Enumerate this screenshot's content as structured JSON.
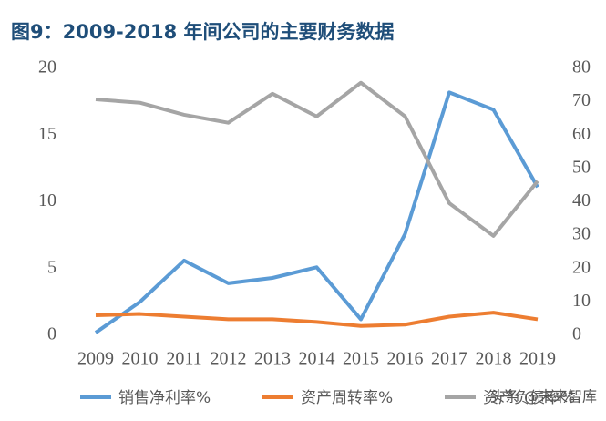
{
  "chart_data": {
    "type": "line",
    "title": "图9：2009-2018 年间公司的主要财务数据",
    "categories": [
      "2009",
      "2010",
      "2011",
      "2012",
      "2013",
      "2014",
      "2015",
      "2016",
      "2017",
      "2018",
      "2019"
    ],
    "series": [
      {
        "name": "销售净利率%",
        "color": "#5b9bd5",
        "values": [
          0.2,
          2.5,
          5.6,
          3.9,
          4.3,
          5.1,
          1.2,
          7.6,
          18.2,
          16.9,
          11.1
        ]
      },
      {
        "name": "资产周转率%",
        "color": "#ed7d31",
        "values": [
          1.5,
          1.6,
          1.4,
          1.2,
          1.2,
          1.0,
          0.7,
          0.8,
          1.4,
          1.7,
          1.2
        ]
      },
      {
        "name": "资产负债率%",
        "color": "#a5a5a5",
        "axis": "y2",
        "values": [
          70.7,
          69.7,
          66.1,
          63.7,
          72.4,
          65.6,
          75.7,
          65.6,
          39.6,
          29.8,
          46.2
        ]
      }
    ],
    "ylim": [
      0,
      20
    ],
    "yticks": [
      0,
      5,
      10,
      15,
      20
    ],
    "y2lim": [
      0,
      80
    ],
    "y2ticks": [
      0,
      10,
      20,
      30,
      40,
      50,
      60,
      70,
      80
    ],
    "watermark": "头条 @未来智库"
  }
}
